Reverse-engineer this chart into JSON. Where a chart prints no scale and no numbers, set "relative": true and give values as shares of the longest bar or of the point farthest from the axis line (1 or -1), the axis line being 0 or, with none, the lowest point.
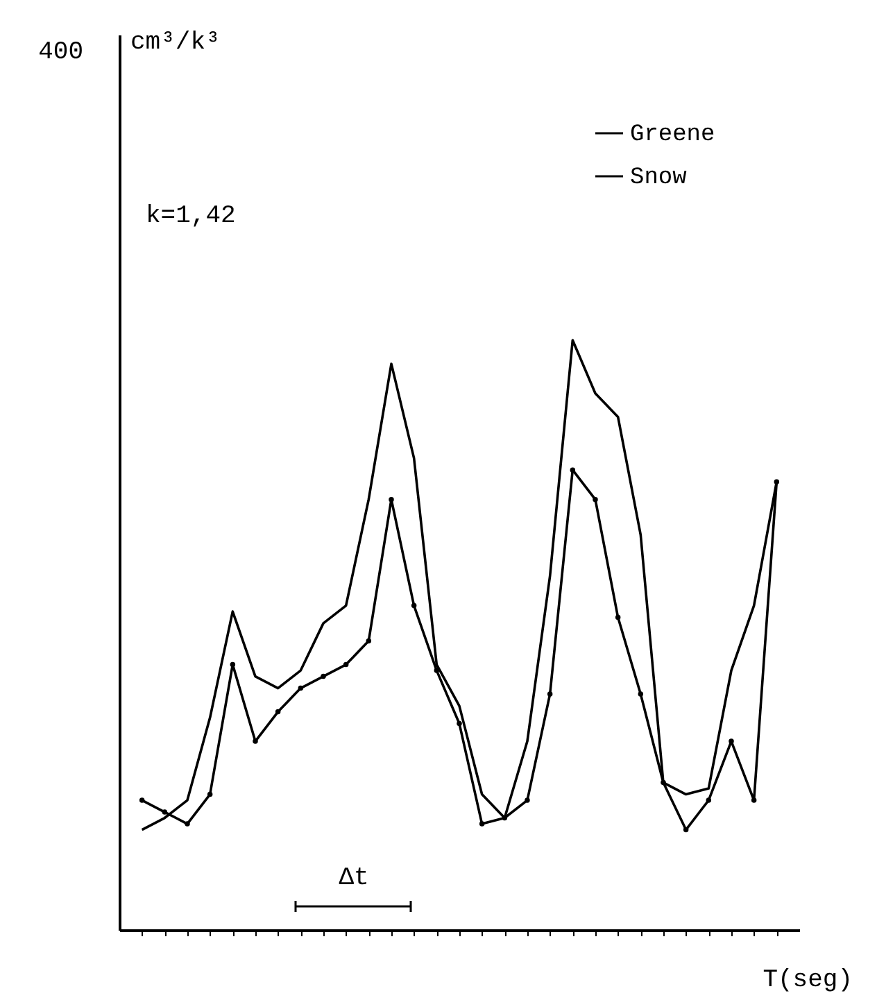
{
  "chart_data": {
    "type": "line",
    "relative": true,
    "xlabel": "T(seg)",
    "categories": [
      null,
      null,
      null,
      null,
      null,
      null,
      null,
      null,
      null,
      null,
      null,
      null,
      null,
      null,
      null,
      null,
      null,
      null,
      null,
      null,
      null,
      null,
      null,
      null,
      null,
      null,
      null,
      null,
      null
    ],
    "series": [
      {
        "name": "Greene",
        "color": "#000000",
        "marker": "circle",
        "values": [
          0.22,
          0.2,
          0.18,
          0.23,
          0.45,
          0.32,
          0.37,
          0.41,
          0.43,
          0.45,
          0.49,
          0.73,
          0.55,
          0.44,
          0.35,
          0.18,
          0.19,
          0.22,
          0.4,
          0.78,
          0.73,
          0.53,
          0.4,
          0.25,
          0.17,
          0.22,
          0.32,
          0.22,
          0.76
        ]
      },
      {
        "name": "Snow",
        "color": "#000000",
        "values": [
          0.17,
          0.19,
          0.22,
          0.36,
          0.54,
          0.43,
          0.41,
          0.44,
          0.52,
          0.55,
          0.73,
          0.96,
          0.8,
          0.45,
          0.38,
          0.23,
          0.19,
          0.32,
          0.6,
          1,
          0.91,
          0.87,
          0.67,
          0.25,
          0.23,
          0.24,
          0.44,
          0.55,
          0.76
        ]
      }
    ],
    "annotations": [
      "400",
      "cm³/k³",
      "k=1,42",
      "Δt"
    ],
    "legend": "top right",
    "grid": false
  }
}
